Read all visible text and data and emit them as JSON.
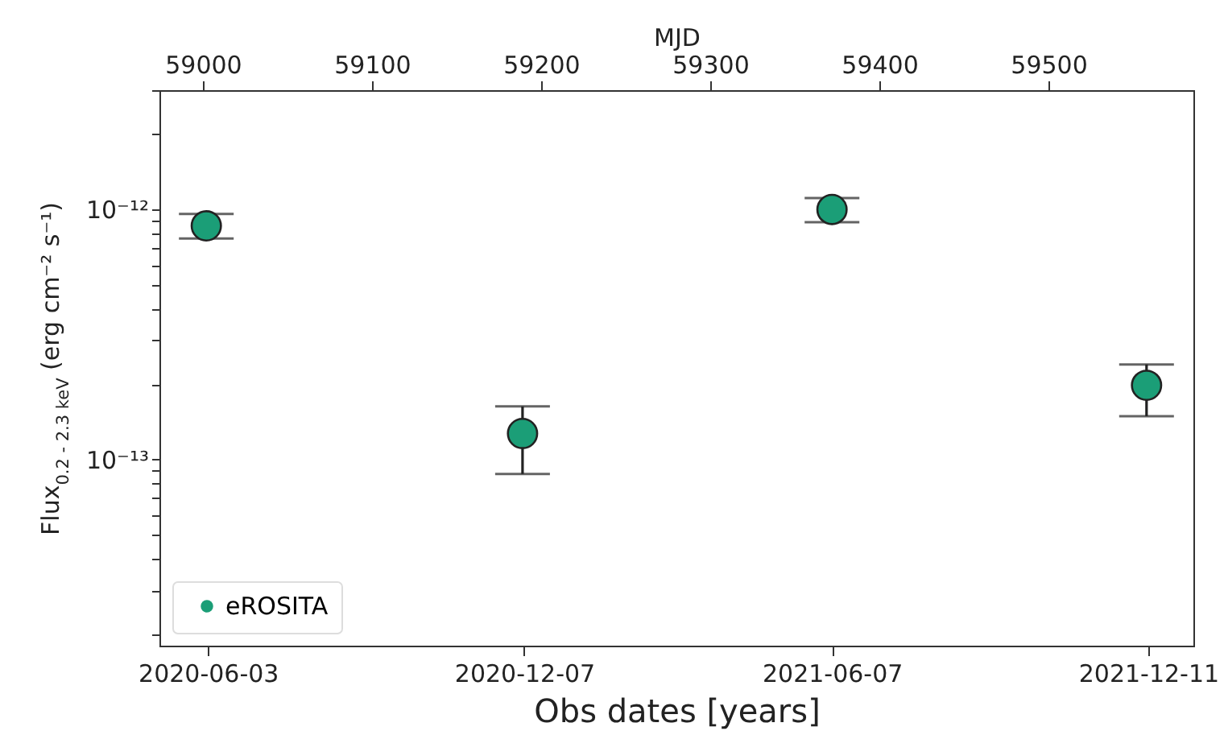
{
  "chart_data": {
    "type": "scatter",
    "xlabel": "Obs dates [years]",
    "x2label": "MJD",
    "ylabel": "Flux$_{0.2 - 2.3 keV}$ (erg cm⁻² s⁻¹)",
    "x": [
      "2020-06-02",
      "2020-12-06",
      "2021-06-07",
      "2021-12-10"
    ],
    "series": [
      {
        "name": "eROSITA",
        "color": "#1b9e77",
        "values": [
          8.6e-13,
          1.27e-13,
          1e-12,
          1.98e-13
        ],
        "errors": [
          [
            7.65e-13,
            9.6e-13
          ],
          [
            8.75e-14,
            1.63e-13
          ],
          [
            8.9e-13,
            1.11e-12
          ],
          [
            1.49e-13,
            2.4e-13
          ]
        ]
      }
    ],
    "xlim": [
      "2020-05-05T07:00",
      "2022-01-06T17:00"
    ],
    "xticks": [
      "2020-06-03",
      "2020-12-07",
      "2021-06-07",
      "2021-12-11"
    ],
    "x2lim": [
      58974.3,
      59585.7
    ],
    "x2ticks": [
      59000,
      59100,
      59200,
      59300,
      59400,
      59500
    ],
    "ylim": [
      1.8e-14,
      3e-12
    ],
    "yticks": [
      {
        "value": 2e-14,
        "label": null
      },
      {
        "value": 3e-14,
        "label": null
      },
      {
        "value": 4e-14,
        "label": null
      },
      {
        "value": 5e-14,
        "label": null
      },
      {
        "value": 6e-14,
        "label": null
      },
      {
        "value": 7e-14,
        "label": null
      },
      {
        "value": 8e-14,
        "label": null
      },
      {
        "value": 9e-14,
        "label": null
      },
      {
        "value": 1e-13,
        "label": "10⁻¹³"
      },
      {
        "value": 2e-13,
        "label": null
      },
      {
        "value": 3e-13,
        "label": null
      },
      {
        "value": 4e-13,
        "label": null
      },
      {
        "value": 5e-13,
        "label": null
      },
      {
        "value": 6e-13,
        "label": null
      },
      {
        "value": 7e-13,
        "label": null
      },
      {
        "value": 8e-13,
        "label": null
      },
      {
        "value": 9e-13,
        "label": null
      },
      {
        "value": 1e-12,
        "label": "10⁻¹²"
      },
      {
        "value": 2e-12,
        "label": null
      },
      {
        "value": 3e-12,
        "label": null
      }
    ],
    "log": true,
    "grid": false,
    "marker": "circle",
    "legend": "bottom left"
  }
}
